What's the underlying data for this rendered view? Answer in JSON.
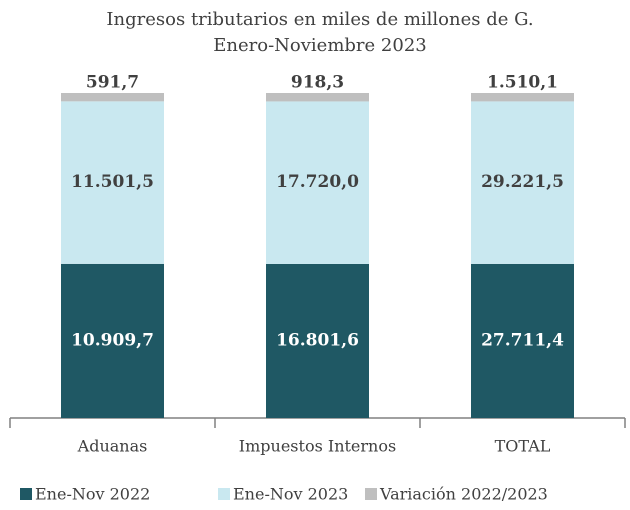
{
  "chart_data": {
    "type": "stacked100",
    "title": "Ingresos tributarios en miles de millones de G.",
    "subtitle": "Enero-Noviembre 2023",
    "categories": [
      "Aduanas",
      "Impuestos Internos",
      "TOTAL"
    ],
    "series": [
      {
        "name": "Ene-Nov 2022",
        "color": "#1f5864",
        "label_color": "#ffffff",
        "values": [
          10909.7,
          16801.6,
          27711.4
        ],
        "value_labels": [
          "10.909,7",
          "16.801,6",
          "27.711,4"
        ]
      },
      {
        "name": "Ene-Nov 2023",
        "color": "#c9e8f0",
        "label_color": "#404040",
        "values": [
          11501.5,
          17720.0,
          29221.5
        ],
        "value_labels": [
          "11.501,5",
          "17.720,0",
          "29.221,5"
        ]
      },
      {
        "name": "Variación 2022/2023",
        "color": "#bfbfbf",
        "label_color": "#404040",
        "values": [
          591.7,
          918.3,
          1510.1
        ],
        "value_labels": [
          "591,7",
          "918,3",
          "1.510,1"
        ]
      }
    ],
    "legend": "bottom"
  }
}
